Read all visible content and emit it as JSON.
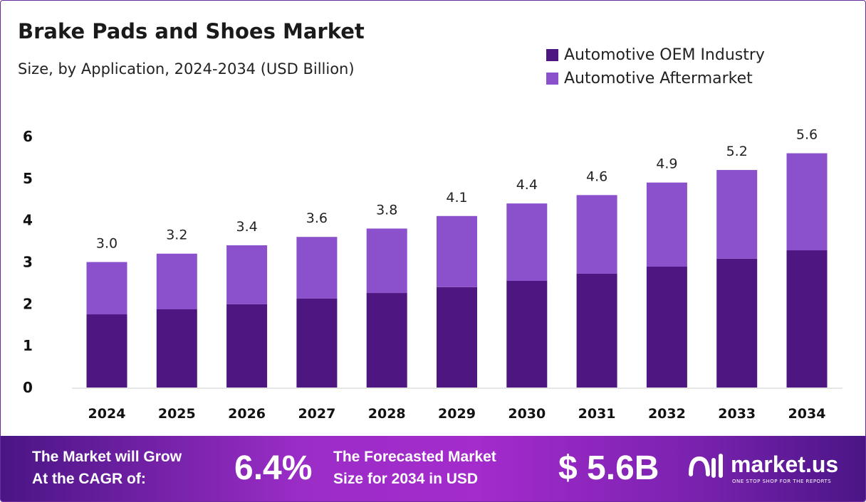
{
  "chart_data": {
    "type": "bar",
    "stacked": true,
    "title": "Brake Pads and Shoes Market",
    "subtitle": "Size, by Application, 2024-2034 (USD Billion)",
    "categories": [
      "2024",
      "2025",
      "2026",
      "2027",
      "2028",
      "2029",
      "2030",
      "2031",
      "2032",
      "2033",
      "2034"
    ],
    "series": [
      {
        "name": "Automotive OEM Industry",
        "color": "#4e1680",
        "values": [
          1.75,
          1.87,
          1.99,
          2.13,
          2.26,
          2.4,
          2.55,
          2.72,
          2.89,
          3.08,
          3.28
        ]
      },
      {
        "name": "Automotive Aftermarket",
        "color": "#8b50cc",
        "values": [
          1.25,
          1.33,
          1.41,
          1.47,
          1.54,
          1.7,
          1.85,
          1.88,
          2.01,
          2.12,
          2.32
        ]
      }
    ],
    "totals": [
      "3.0",
      "3.2",
      "3.4",
      "3.6",
      "3.8",
      "4.1",
      "4.4",
      "4.6",
      "4.9",
      "5.2",
      "5.6"
    ],
    "yticks": [
      "0",
      "1",
      "2",
      "3",
      "4",
      "5",
      "6"
    ],
    "ylim": [
      0,
      6
    ],
    "grid": false,
    "legend": "top-right"
  },
  "footer": {
    "cagr_label_1": "The Market will Grow",
    "cagr_label_2": "At the CAGR of:",
    "cagr_value": "6.4%",
    "forecast_label_1": "The Forecasted Market",
    "forecast_label_2": "Size for 2034 in USD",
    "forecast_value": "$ 5.6B",
    "logo_text": "market.us",
    "logo_tagline": "ONE STOP SHOP FOR THE REPORTS"
  }
}
